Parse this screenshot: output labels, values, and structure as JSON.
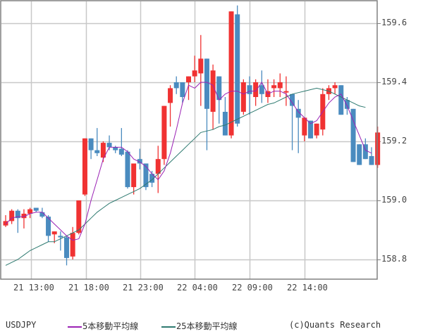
{
  "chart_data": {
    "type": "candlestick",
    "symbol": "USDJPY",
    "x_tick_labels": [
      "21 13:00",
      "21 18:00",
      "21 23:00",
      "22 04:00",
      "22 09:00",
      "22 14:00"
    ],
    "y_tick_labels": [
      "159.6",
      "159.4",
      "159.2",
      "159.0",
      "158.8"
    ],
    "y_ticks": [
      159.6,
      159.4,
      159.2,
      159.0,
      158.8
    ],
    "ylim": [
      158.72,
      159.67
    ],
    "grid": true,
    "colors": {
      "up": "#f03232",
      "down": "#4a8bbf",
      "ma5": "#9b22b5",
      "ma25": "#2e7a70",
      "grid": "#c8c8c8",
      "axis": "#808080"
    },
    "candles": [
      {
        "o": 158.915,
        "h": 158.95,
        "l": 158.91,
        "c": 158.93
      },
      {
        "o": 158.93,
        "h": 158.97,
        "l": 158.92,
        "c": 158.965
      },
      {
        "o": 158.965,
        "h": 158.97,
        "l": 158.89,
        "c": 158.94
      },
      {
        "o": 158.94,
        "h": 158.97,
        "l": 158.905,
        "c": 158.955
      },
      {
        "o": 158.955,
        "h": 158.975,
        "l": 158.94,
        "c": 158.97
      },
      {
        "o": 158.975,
        "h": 158.975,
        "l": 158.96,
        "c": 158.965
      },
      {
        "o": 158.96,
        "h": 158.975,
        "l": 158.94,
        "c": 158.945
      },
      {
        "o": 158.945,
        "h": 158.95,
        "l": 158.86,
        "c": 158.88
      },
      {
        "o": 158.885,
        "h": 158.895,
        "l": 158.855,
        "c": 158.895
      },
      {
        "o": 158.88,
        "h": 158.895,
        "l": 158.83,
        "c": 158.875
      },
      {
        "o": 158.875,
        "h": 158.88,
        "l": 158.78,
        "c": 158.805
      },
      {
        "o": 158.81,
        "h": 158.91,
        "l": 158.8,
        "c": 158.89
      },
      {
        "o": 158.89,
        "h": 159.0,
        "l": 158.885,
        "c": 159.0
      },
      {
        "o": 159.02,
        "h": 159.21,
        "l": 159.015,
        "c": 159.21
      },
      {
        "o": 159.21,
        "h": 159.21,
        "l": 159.14,
        "c": 159.17
      },
      {
        "o": 159.17,
        "h": 159.245,
        "l": 159.15,
        "c": 159.16
      },
      {
        "o": 159.145,
        "h": 159.2,
        "l": 159.13,
        "c": 159.195
      },
      {
        "o": 159.195,
        "h": 159.22,
        "l": 159.17,
        "c": 159.18
      },
      {
        "o": 159.18,
        "h": 159.185,
        "l": 159.16,
        "c": 159.17
      },
      {
        "o": 159.175,
        "h": 159.245,
        "l": 159.15,
        "c": 159.155
      },
      {
        "o": 159.165,
        "h": 159.17,
        "l": 159.04,
        "c": 159.045
      },
      {
        "o": 159.045,
        "h": 159.125,
        "l": 159.02,
        "c": 159.125
      },
      {
        "o": 159.14,
        "h": 159.175,
        "l": 159.105,
        "c": 159.125
      },
      {
        "o": 159.125,
        "h": 159.125,
        "l": 159.035,
        "c": 159.045
      },
      {
        "o": 159.09,
        "h": 159.1,
        "l": 159.045,
        "c": 159.06
      },
      {
        "o": 159.09,
        "h": 159.185,
        "l": 159.025,
        "c": 159.14
      },
      {
        "o": 159.14,
        "h": 159.32,
        "l": 159.12,
        "c": 159.32
      },
      {
        "o": 159.33,
        "h": 159.39,
        "l": 159.25,
        "c": 159.38
      },
      {
        "o": 159.4,
        "h": 159.42,
        "l": 159.36,
        "c": 159.38
      },
      {
        "o": 159.4,
        "h": 159.4,
        "l": 159.33,
        "c": 159.35
      },
      {
        "o": 159.4,
        "h": 159.42,
        "l": 159.34,
        "c": 159.42
      },
      {
        "o": 159.42,
        "h": 159.49,
        "l": 159.4,
        "c": 159.44
      },
      {
        "o": 159.43,
        "h": 159.56,
        "l": 159.32,
        "c": 159.48
      },
      {
        "o": 159.48,
        "h": 159.48,
        "l": 159.17,
        "c": 159.31
      },
      {
        "o": 159.3,
        "h": 159.46,
        "l": 159.24,
        "c": 159.44
      },
      {
        "o": 159.42,
        "h": 159.42,
        "l": 159.26,
        "c": 159.34
      },
      {
        "o": 159.3,
        "h": 159.35,
        "l": 159.22,
        "c": 159.22
      },
      {
        "o": 159.22,
        "h": 159.64,
        "l": 159.21,
        "c": 159.64
      },
      {
        "o": 159.63,
        "h": 159.66,
        "l": 159.25,
        "c": 159.26
      },
      {
        "o": 159.3,
        "h": 159.41,
        "l": 159.29,
        "c": 159.4
      },
      {
        "o": 159.39,
        "h": 159.42,
        "l": 159.29,
        "c": 159.36
      },
      {
        "o": 159.35,
        "h": 159.41,
        "l": 159.32,
        "c": 159.4
      },
      {
        "o": 159.39,
        "h": 159.44,
        "l": 159.33,
        "c": 159.36
      },
      {
        "o": 159.35,
        "h": 159.41,
        "l": 159.33,
        "c": 159.37
      },
      {
        "o": 159.38,
        "h": 159.41,
        "l": 159.35,
        "c": 159.39
      },
      {
        "o": 159.38,
        "h": 159.43,
        "l": 159.35,
        "c": 159.4
      },
      {
        "o": 159.37,
        "h": 159.42,
        "l": 159.32,
        "c": 159.37
      },
      {
        "o": 159.36,
        "h": 159.36,
        "l": 159.17,
        "c": 159.32
      },
      {
        "o": 159.31,
        "h": 159.34,
        "l": 159.16,
        "c": 159.28
      },
      {
        "o": 159.22,
        "h": 159.28,
        "l": 159.2,
        "c": 159.28
      },
      {
        "o": 159.27,
        "h": 159.27,
        "l": 159.21,
        "c": 159.21
      },
      {
        "o": 159.22,
        "h": 159.26,
        "l": 159.21,
        "c": 159.26
      },
      {
        "o": 159.24,
        "h": 159.38,
        "l": 159.22,
        "c": 159.36
      },
      {
        "o": 159.36,
        "h": 159.39,
        "l": 159.34,
        "c": 159.38
      },
      {
        "o": 159.38,
        "h": 159.4,
        "l": 159.36,
        "c": 159.39
      },
      {
        "o": 159.39,
        "h": 159.39,
        "l": 159.29,
        "c": 159.29
      },
      {
        "o": 159.34,
        "h": 159.35,
        "l": 159.29,
        "c": 159.31
      },
      {
        "o": 159.31,
        "h": 159.31,
        "l": 159.13,
        "c": 159.13
      },
      {
        "o": 159.19,
        "h": 159.19,
        "l": 159.12,
        "c": 159.12
      },
      {
        "o": 159.19,
        "h": 159.21,
        "l": 159.14,
        "c": 159.14
      },
      {
        "o": 159.15,
        "h": 159.18,
        "l": 159.12,
        "c": 159.12
      },
      {
        "o": 159.12,
        "h": 159.25,
        "l": 159.11,
        "c": 159.23
      }
    ],
    "ma5": [
      158.92,
      158.94,
      158.945,
      158.945,
      158.955,
      158.96,
      158.96,
      158.94,
      158.92,
      158.9,
      158.88,
      158.865,
      158.87,
      158.92,
      159.0,
      159.07,
      159.14,
      159.18,
      159.18,
      159.18,
      159.165,
      159.14,
      159.13,
      159.115,
      159.09,
      159.07,
      159.1,
      159.16,
      159.24,
      159.33,
      159.39,
      159.38,
      159.4,
      159.4,
      159.39,
      159.34,
      159.36,
      159.37,
      159.37,
      159.36,
      159.37,
      159.37,
      159.4,
      159.36,
      159.37,
      159.37,
      159.36,
      159.33,
      159.3,
      159.28,
      159.26,
      159.27,
      159.3,
      159.33,
      159.35,
      159.36,
      159.32,
      159.27,
      159.22,
      159.17,
      159.16
    ],
    "ma25": [
      158.78,
      158.79,
      158.8,
      158.815,
      158.83,
      158.84,
      158.85,
      158.86,
      158.86,
      158.87,
      158.88,
      158.89,
      158.9,
      158.92,
      158.94,
      158.96,
      158.975,
      158.99,
      159.0,
      159.01,
      159.02,
      159.03,
      159.04,
      159.055,
      159.07,
      159.09,
      159.11,
      159.13,
      159.15,
      159.17,
      159.19,
      159.21,
      159.23,
      159.235,
      159.24,
      159.25,
      159.255,
      159.265,
      159.275,
      159.285,
      159.295,
      159.305,
      159.315,
      159.325,
      159.33,
      159.34,
      159.35,
      159.36,
      159.365,
      159.37,
      159.375,
      159.38,
      159.375,
      159.37,
      159.36,
      159.35,
      159.34,
      159.33,
      159.32,
      159.315
    ]
  },
  "legend": {
    "symbol": "USDJPY",
    "ma5_label": "5本移動平均線",
    "ma25_label": "25本移動平均線",
    "credit": "(c)Quants Research"
  }
}
